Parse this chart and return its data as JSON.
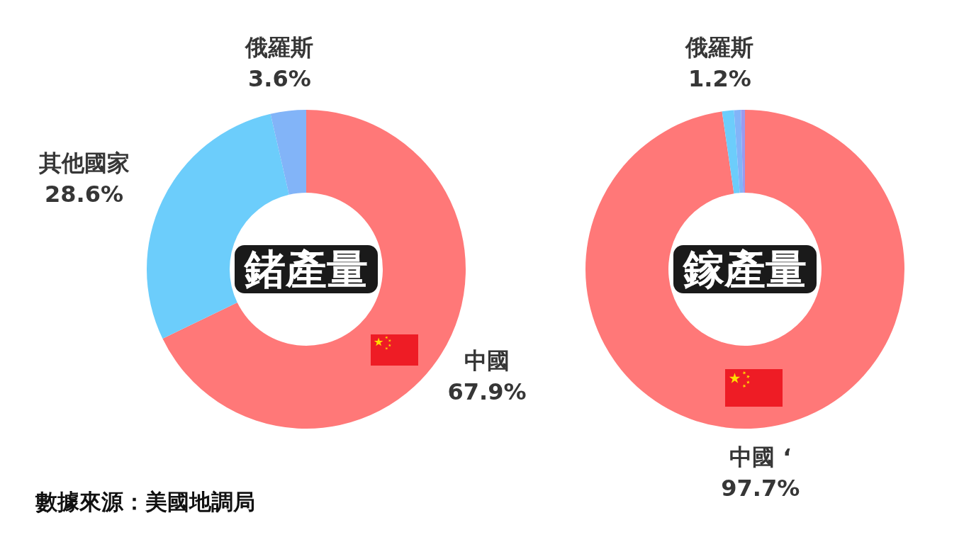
{
  "chart_data": [
    {
      "type": "donut",
      "title": "鍺產量",
      "categories": [
        "中國",
        "其他國家",
        "俄羅斯"
      ],
      "values": [
        67.9,
        28.6,
        3.6
      ],
      "colors": [
        "#ff7878",
        "#6ccdfb",
        "#82b4f8"
      ],
      "value_labels": [
        "67.9%",
        "28.6%",
        "3.6%"
      ],
      "annotations": [
        "數據來源：美國地調局"
      ]
    },
    {
      "type": "donut",
      "title": "鎵產量",
      "categories": [
        "中國 ‘",
        "俄羅斯",
        null,
        null
      ],
      "values": [
        97.7,
        1.2,
        0.7,
        0.4
      ],
      "colors": [
        "#ff7878",
        "#6ccdfb",
        "#82b4f8",
        "#9a9aee"
      ],
      "value_labels": [
        "97.7%",
        "1.2%",
        null,
        null
      ]
    }
  ]
}
